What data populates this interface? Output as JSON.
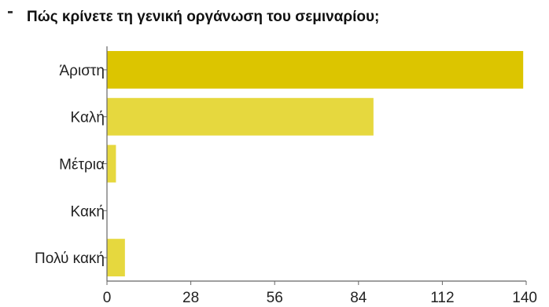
{
  "chart_data": {
    "type": "bar",
    "orientation": "horizontal",
    "title": "Πώς κρίνετε τη γενική οργάνωση του σεμιναρίου;",
    "categories": [
      "Άριστη",
      "Καλή",
      "Μέτρια",
      "Κακή",
      "Πολύ κακή"
    ],
    "values": [
      139,
      89,
      3,
      0,
      6
    ],
    "xlim": [
      0,
      140
    ],
    "xticks": [
      0,
      28,
      56,
      84,
      112,
      140
    ],
    "xtick_labels": [
      "0",
      "28",
      "56",
      "84",
      "112",
      "140"
    ],
    "bar_colors": [
      "#dcc500",
      "#e6d83e",
      "#e6d83e",
      "#e6d83e",
      "#e6d83e"
    ],
    "grid": false,
    "legend": "none"
  }
}
